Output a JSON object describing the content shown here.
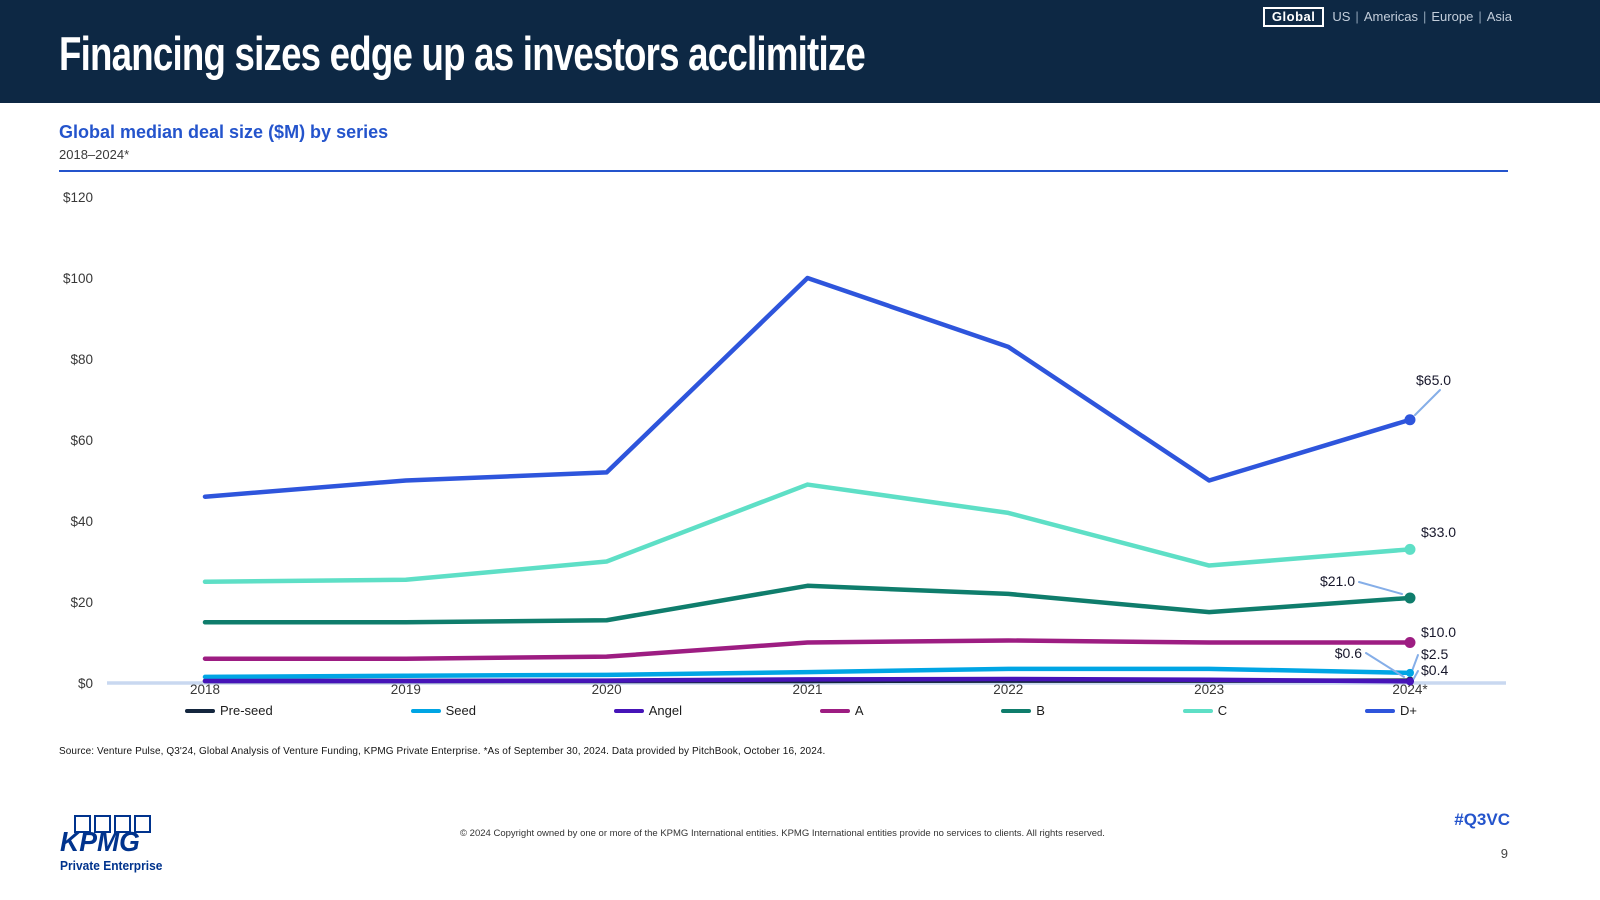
{
  "header": {
    "title": "Financing sizes edge up as investors acclimitize",
    "region_nav": {
      "selected": "Global",
      "items": [
        "US",
        "Americas",
        "Europe",
        "Asia"
      ],
      "separator": "|"
    }
  },
  "chart_header": {
    "title": "Global median deal size ($M) by series",
    "subtitle": "2018–2024*"
  },
  "chart_data": {
    "type": "line",
    "title": "Global median deal size ($M) by series",
    "subtitle": "2018–2024*",
    "x": [
      "2018",
      "2019",
      "2020",
      "2021",
      "2022",
      "2023",
      "2024*"
    ],
    "y_axis": {
      "min": 0,
      "max": 120,
      "ticks": [
        0,
        20,
        40,
        60,
        80,
        100,
        120
      ],
      "tick_prefix": "$"
    },
    "grid": false,
    "legend_position": "bottom",
    "series": [
      {
        "name": "Pre-seed",
        "color": "#14263E",
        "values": [
          0.5,
          0.5,
          0.5,
          0.5,
          0.6,
          0.6,
          0.6
        ],
        "end_label": "$0.6"
      },
      {
        "name": "Seed",
        "color": "#00A5E4",
        "values": [
          1.5,
          1.8,
          2.0,
          2.7,
          3.5,
          3.5,
          2.5
        ],
        "end_label": "$2.5"
      },
      {
        "name": "Angel",
        "color": "#4614B8",
        "values": [
          0.5,
          0.5,
          0.6,
          0.9,
          1.0,
          0.8,
          0.4
        ],
        "end_label": "$0.4"
      },
      {
        "name": "A",
        "color": "#9D1D82",
        "values": [
          6.0,
          6.0,
          6.5,
          10.0,
          10.5,
          10.0,
          10.0
        ],
        "end_label": "$10.0"
      },
      {
        "name": "B",
        "color": "#0F7D6C",
        "values": [
          15.0,
          15.0,
          15.5,
          24.0,
          22.0,
          17.5,
          21.0
        ],
        "end_label": "$21.0"
      },
      {
        "name": "C",
        "color": "#5EDFC6",
        "values": [
          25.0,
          25.5,
          30.0,
          49.0,
          42.0,
          29.0,
          33.0
        ],
        "end_label": "$33.0"
      },
      {
        "name": "D+",
        "color": "#2E55DC",
        "values": [
          46.0,
          50.0,
          52.0,
          100.0,
          83.0,
          50.0,
          65.0
        ],
        "end_label": "$65.0"
      }
    ]
  },
  "source_note": "Source: Venture Pulse, Q3'24, Global Analysis of Venture Funding, KPMG Private Enterprise. *As of September 30, 2024. Data provided by PitchBook, October 16, 2024.",
  "footer": {
    "logo_brand": "KPMG",
    "logo_subbrand": "Private Enterprise",
    "copyright": "© 2024 Copyright owned by one or more of the KPMG International entities. KPMG International entities provide no services to clients. All rights reserved.",
    "hashtag": "#Q3VC",
    "page_number": "9"
  }
}
